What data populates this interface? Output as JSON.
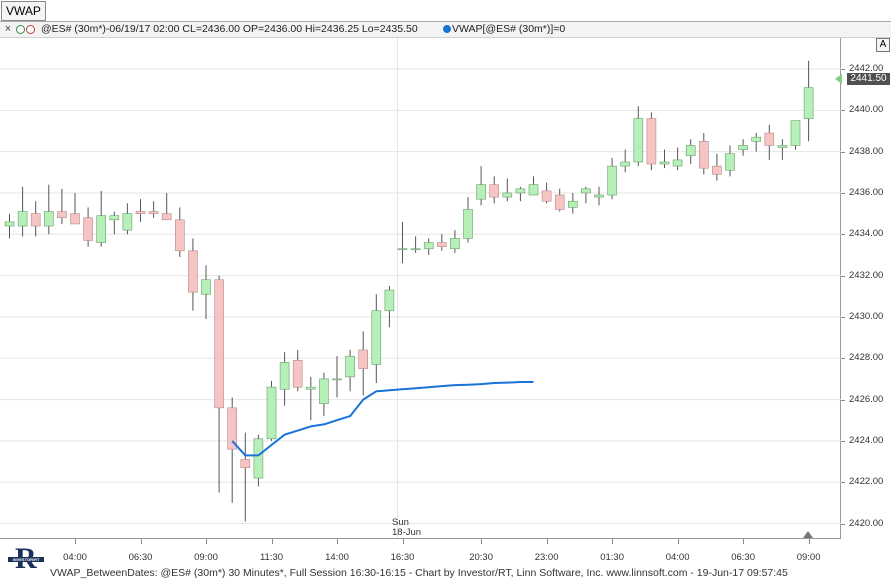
{
  "window": {
    "title": "VWAP"
  },
  "infobar": {
    "close_glyph": "×",
    "ohlc_text": "@ES# (30m*)-06/19/17 02:00 CL=2436.00 OP=2436.00 Hi=2436.25 Lo=2435.50",
    "vwap_text": "VWAP[@ES# (30m*)]=0",
    "colors": {
      "up": "#2e8b3c",
      "down": "#c43b3b",
      "vwap": "#1874d6"
    }
  },
  "yaxis": {
    "labels": [
      "2420.00",
      "2422.00",
      "2424.00",
      "2426.00",
      "2428.00",
      "2430.00",
      "2432.00",
      "2434.00",
      "2436.00",
      "2438.00",
      "2440.00",
      "2442.00"
    ],
    "last_price": "2441.50",
    "autoscale_button": "A"
  },
  "xaxis": {
    "labels": [
      "04:00",
      "06:30",
      "09:00",
      "11:30",
      "14:00",
      "16:30",
      "20:30",
      "23:00",
      "01:30",
      "04:00",
      "06:30",
      "09:00"
    ],
    "day_marker": {
      "weekday": "Sun",
      "date": "18-Jun"
    }
  },
  "footer": {
    "text": "VWAP_BetweenDates: @ES# (30m*) 30 Minutes*, Full Session 16:30-16:15 - Chart by Investor/RT, Linn Software, Inc. www.linnsoft.com - 19-Jun-17 09:57:45",
    "logo_letter": "R",
    "logo_caption": "INVESTOR/RT"
  },
  "chart_data": {
    "type": "candlestick",
    "symbol": "@ES#",
    "interval": "30 Minutes",
    "ylim": [
      2419.3,
      2443.5
    ],
    "colors": {
      "up_fill": "#b6efb8",
      "up_border": "#6a9e6c",
      "down_fill": "#f7c4c4",
      "down_border": "#b48a8a",
      "vwap": "#1874d6",
      "wick": "#555555",
      "grid": "#e6e6e6"
    },
    "candles": [
      {
        "o": 2434.4,
        "h": 2435.0,
        "l": 2433.8,
        "c": 2434.6
      },
      {
        "o": 2434.4,
        "h": 2436.3,
        "l": 2433.9,
        "c": 2435.1
      },
      {
        "o": 2435.0,
        "h": 2435.6,
        "l": 2433.9,
        "c": 2434.4
      },
      {
        "o": 2434.4,
        "h": 2436.4,
        "l": 2434.0,
        "c": 2435.1
      },
      {
        "o": 2435.1,
        "h": 2436.2,
        "l": 2434.5,
        "c": 2434.8
      },
      {
        "o": 2435.0,
        "h": 2436.0,
        "l": 2434.6,
        "c": 2434.5
      },
      {
        "o": 2434.8,
        "h": 2435.3,
        "l": 2433.4,
        "c": 2433.7
      },
      {
        "o": 2433.6,
        "h": 2436.1,
        "l": 2433.4,
        "c": 2434.9
      },
      {
        "o": 2434.7,
        "h": 2435.1,
        "l": 2434.0,
        "c": 2434.9
      },
      {
        "o": 2434.2,
        "h": 2435.5,
        "l": 2434.0,
        "c": 2435.0
      },
      {
        "o": 2435.1,
        "h": 2435.7,
        "l": 2434.6,
        "c": 2435.0
      },
      {
        "o": 2435.1,
        "h": 2435.6,
        "l": 2434.8,
        "c": 2435.0
      },
      {
        "o": 2435.0,
        "h": 2436.0,
        "l": 2434.7,
        "c": 2434.7
      },
      {
        "o": 2434.7,
        "h": 2435.3,
        "l": 2432.9,
        "c": 2433.2
      },
      {
        "o": 2433.2,
        "h": 2433.8,
        "l": 2430.3,
        "c": 2431.2
      },
      {
        "o": 2431.1,
        "h": 2432.5,
        "l": 2429.9,
        "c": 2431.8
      },
      {
        "o": 2431.8,
        "h": 2432.0,
        "l": 2421.5,
        "c": 2425.6
      },
      {
        "o": 2425.6,
        "h": 2426.1,
        "l": 2421.0,
        "c": 2423.6
      },
      {
        "o": 2423.1,
        "h": 2424.4,
        "l": 2420.1,
        "c": 2422.7
      },
      {
        "o": 2422.2,
        "h": 2424.3,
        "l": 2421.8,
        "c": 2424.1
      },
      {
        "o": 2424.1,
        "h": 2426.9,
        "l": 2424.0,
        "c": 2426.6
      },
      {
        "o": 2426.5,
        "h": 2428.3,
        "l": 2425.7,
        "c": 2427.8
      },
      {
        "o": 2427.9,
        "h": 2428.4,
        "l": 2426.4,
        "c": 2426.6
      },
      {
        "o": 2426.5,
        "h": 2427.1,
        "l": 2425.0,
        "c": 2426.6
      },
      {
        "o": 2425.8,
        "h": 2427.3,
        "l": 2425.2,
        "c": 2427.0
      },
      {
        "o": 2427.0,
        "h": 2428.1,
        "l": 2426.1,
        "c": 2427.0
      },
      {
        "o": 2427.1,
        "h": 2428.4,
        "l": 2426.4,
        "c": 2428.1
      },
      {
        "o": 2428.4,
        "h": 2429.3,
        "l": 2426.2,
        "c": 2427.5
      },
      {
        "o": 2427.7,
        "h": 2431.1,
        "l": 2426.8,
        "c": 2430.3
      },
      {
        "o": 2430.3,
        "h": 2431.5,
        "l": 2429.5,
        "c": 2431.3
      },
      {
        "o": 2433.3,
        "h": 2434.6,
        "l": 2432.6,
        "c": 2433.3
      },
      {
        "o": 2433.3,
        "h": 2433.9,
        "l": 2433.1,
        "c": 2433.3
      },
      {
        "o": 2433.3,
        "h": 2433.8,
        "l": 2433.0,
        "c": 2433.6
      },
      {
        "o": 2433.6,
        "h": 2434.0,
        "l": 2433.2,
        "c": 2433.4
      },
      {
        "o": 2433.3,
        "h": 2434.2,
        "l": 2433.1,
        "c": 2433.8
      },
      {
        "o": 2433.8,
        "h": 2435.8,
        "l": 2433.6,
        "c": 2435.2
      },
      {
        "o": 2435.7,
        "h": 2437.3,
        "l": 2435.4,
        "c": 2436.4
      },
      {
        "o": 2436.4,
        "h": 2436.8,
        "l": 2435.5,
        "c": 2435.8
      },
      {
        "o": 2435.8,
        "h": 2436.7,
        "l": 2435.6,
        "c": 2436.0
      },
      {
        "o": 2436.0,
        "h": 2436.3,
        "l": 2435.6,
        "c": 2436.2
      },
      {
        "o": 2435.9,
        "h": 2436.8,
        "l": 2435.9,
        "c": 2436.4
      },
      {
        "o": 2436.1,
        "h": 2436.5,
        "l": 2435.5,
        "c": 2435.6
      },
      {
        "o": 2435.9,
        "h": 2436.2,
        "l": 2435.1,
        "c": 2435.2
      },
      {
        "o": 2435.3,
        "h": 2436.0,
        "l": 2435.0,
        "c": 2435.6
      },
      {
        "o": 2436.0,
        "h": 2436.3,
        "l": 2435.5,
        "c": 2436.2
      },
      {
        "o": 2435.8,
        "h": 2436.3,
        "l": 2435.4,
        "c": 2435.9
      },
      {
        "o": 2435.9,
        "h": 2437.7,
        "l": 2435.7,
        "c": 2437.3
      },
      {
        "o": 2437.3,
        "h": 2438.1,
        "l": 2437.0,
        "c": 2437.5
      },
      {
        "o": 2437.5,
        "h": 2440.2,
        "l": 2437.3,
        "c": 2439.6
      },
      {
        "o": 2439.6,
        "h": 2439.9,
        "l": 2437.1,
        "c": 2437.4
      },
      {
        "o": 2437.4,
        "h": 2438.1,
        "l": 2437.2,
        "c": 2437.5
      },
      {
        "o": 2437.3,
        "h": 2438.2,
        "l": 2437.1,
        "c": 2437.6
      },
      {
        "o": 2437.8,
        "h": 2438.6,
        "l": 2437.4,
        "c": 2438.3
      },
      {
        "o": 2438.5,
        "h": 2438.9,
        "l": 2436.9,
        "c": 2437.2
      },
      {
        "o": 2437.3,
        "h": 2437.9,
        "l": 2436.6,
        "c": 2436.9
      },
      {
        "o": 2437.1,
        "h": 2438.3,
        "l": 2436.8,
        "c": 2437.9
      },
      {
        "o": 2438.1,
        "h": 2438.6,
        "l": 2437.8,
        "c": 2438.3
      },
      {
        "o": 2438.5,
        "h": 2438.9,
        "l": 2438.0,
        "c": 2438.7
      },
      {
        "o": 2438.9,
        "h": 2439.3,
        "l": 2437.6,
        "c": 2438.3
      },
      {
        "o": 2438.2,
        "h": 2438.6,
        "l": 2437.6,
        "c": 2438.3
      },
      {
        "o": 2438.3,
        "h": 2439.5,
        "l": 2438.1,
        "c": 2439.5
      },
      {
        "o": 2439.6,
        "h": 2442.4,
        "l": 2438.5,
        "c": 2441.1
      }
    ],
    "vwap": {
      "name": "VWAP",
      "start_index": 17,
      "values": [
        2424.0,
        2423.3,
        2423.3,
        2423.8,
        2424.3,
        2424.5,
        2424.7,
        2424.8,
        2425.0,
        2425.2,
        2426.0,
        2426.4,
        2426.45,
        2426.5,
        2426.55,
        2426.6,
        2426.65,
        2426.7,
        2426.72,
        2426.75,
        2426.8,
        2426.82,
        2426.85,
        2426.85
      ]
    }
  }
}
